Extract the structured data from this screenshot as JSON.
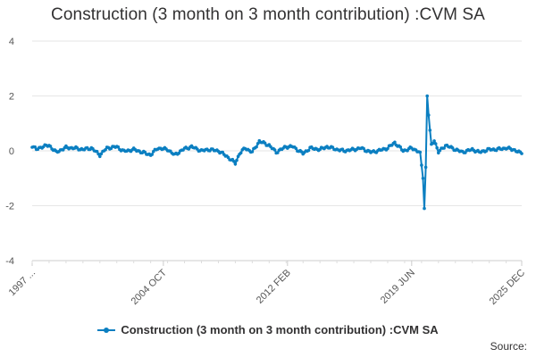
{
  "chart_title": "Construction (3 month on 3 month contribution) :CVM SA",
  "legend_label": "Construction (3 month on 3 month contribution) :CVM SA",
  "source_label": "Source:",
  "series_color": "#0b7fc1",
  "chart_data": {
    "type": "line",
    "title": "Construction (3 month on 3 month contribution) :CVM SA",
    "xlabel": "",
    "ylabel": "",
    "ylim": [
      -4,
      4
    ],
    "y_ticks": [
      "4",
      "2",
      "0",
      "-2",
      "-4"
    ],
    "y_tick_values": [
      4,
      2,
      0,
      -2,
      -4
    ],
    "x_tick_labels": [
      "1997 ...",
      "2004 OCT",
      "2012 FEB",
      "2019 JUN",
      "2025 DEC"
    ],
    "x_tick_dates": [
      "1997-01",
      "2004-10",
      "2012-02",
      "2019-06",
      "2025-12"
    ],
    "x_range": [
      "1997-01",
      "2025-12"
    ],
    "grid": "horizontal",
    "legend_position": "bottom",
    "series": [
      {
        "name": "Construction (3 month on 3 month contribution) :CVM SA",
        "anchors": [
          [
            "1997-01",
            0.18
          ],
          [
            "1997-04",
            0.05
          ],
          [
            "1997-08",
            0.15
          ],
          [
            "1998-01",
            0.2
          ],
          [
            "1998-06",
            -0.05
          ],
          [
            "1999-01",
            0.12
          ],
          [
            "1999-07",
            0.1
          ],
          [
            "2000-01",
            0.05
          ],
          [
            "2000-07",
            0.1
          ],
          [
            "2001-01",
            -0.15
          ],
          [
            "2001-06",
            0.1
          ],
          [
            "2002-01",
            0.15
          ],
          [
            "2002-06",
            -0.02
          ],
          [
            "2003-01",
            0.05
          ],
          [
            "2003-07",
            -0.05
          ],
          [
            "2004-01",
            -0.15
          ],
          [
            "2004-06",
            0.1
          ],
          [
            "2005-01",
            0.05
          ],
          [
            "2005-06",
            -0.15
          ],
          [
            "2006-01",
            0.08
          ],
          [
            "2006-06",
            0.15
          ],
          [
            "2007-01",
            0.0
          ],
          [
            "2007-06",
            0.05
          ],
          [
            "2008-01",
            0.0
          ],
          [
            "2008-07",
            -0.2
          ],
          [
            "2009-01",
            -0.45
          ],
          [
            "2009-04",
            -0.1
          ],
          [
            "2009-08",
            0.1
          ],
          [
            "2010-01",
            -0.05
          ],
          [
            "2010-06",
            0.35
          ],
          [
            "2011-01",
            0.2
          ],
          [
            "2011-06",
            -0.05
          ],
          [
            "2012-01",
            0.15
          ],
          [
            "2012-06",
            0.15
          ],
          [
            "2013-01",
            -0.1
          ],
          [
            "2013-06",
            0.1
          ],
          [
            "2014-01",
            0.05
          ],
          [
            "2014-06",
            0.15
          ],
          [
            "2015-01",
            0.05
          ],
          [
            "2015-06",
            0.0
          ],
          [
            "2016-01",
            0.05
          ],
          [
            "2016-06",
            0.1
          ],
          [
            "2017-01",
            -0.05
          ],
          [
            "2017-06",
            0.0
          ],
          [
            "2018-01",
            0.1
          ],
          [
            "2018-06",
            0.3
          ],
          [
            "2018-12",
            0.0
          ],
          [
            "2019-06",
            0.1
          ],
          [
            "2019-12",
            -0.05
          ],
          [
            "2020-02",
            -1.0
          ],
          [
            "2020-03",
            -2.1
          ],
          [
            "2020-04",
            -0.6
          ],
          [
            "2020-05",
            2.0
          ],
          [
            "2020-06",
            1.3
          ],
          [
            "2020-08",
            0.2
          ],
          [
            "2020-10",
            0.4
          ],
          [
            "2021-01",
            -0.05
          ],
          [
            "2021-06",
            0.2
          ],
          [
            "2022-01",
            0.05
          ],
          [
            "2022-06",
            -0.05
          ],
          [
            "2023-01",
            0.05
          ],
          [
            "2023-06",
            -0.05
          ],
          [
            "2024-01",
            0.05
          ],
          [
            "2024-06",
            0.05
          ],
          [
            "2025-01",
            0.1
          ],
          [
            "2025-06",
            0.05
          ],
          [
            "2025-12",
            -0.1
          ]
        ]
      }
    ]
  }
}
